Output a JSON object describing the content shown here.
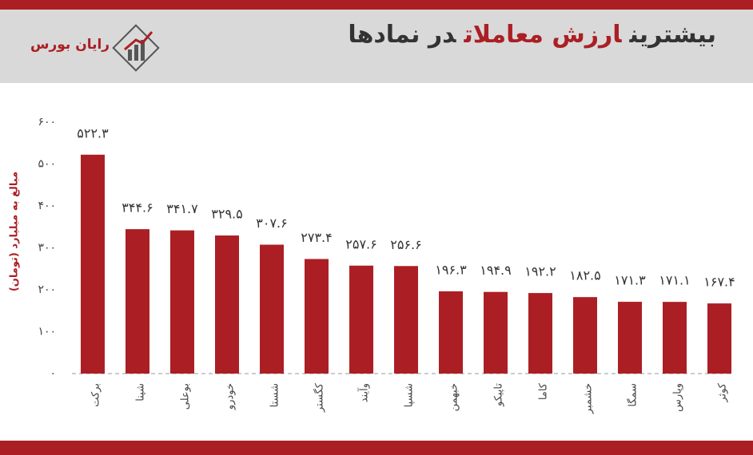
{
  "brand": "رایان بورس",
  "chart_data": {
    "type": "bar",
    "title_parts": [
      "بیشترین",
      "ارزش معاملات",
      "در نمادها"
    ],
    "ylabel": "مبالغ به میلیارد (تومان)",
    "categories": [
      "برکت",
      "شپنا",
      "بوعلی",
      "خودرو",
      "شستا",
      "کگستر",
      "وآیند",
      "شسپا",
      "خبهمن",
      "تاپیکو",
      "کاما",
      "خشمبر",
      "سمگا",
      "وپارس",
      "کوثر"
    ],
    "values": [
      522.3,
      344.6,
      341.7,
      329.5,
      307.6,
      273.4,
      257.6,
      256.6,
      196.3,
      194.9,
      192.2,
      182.5,
      171.3,
      171.1,
      167.4
    ],
    "value_labels": [
      "۵۲۲.۳",
      "۳۴۴.۶",
      "۳۴۱.۷",
      "۳۲۹.۵",
      "۳۰۷.۶",
      "۲۷۳.۴",
      "۲۵۷.۶",
      "۲۵۶.۶",
      "۱۹۶.۳",
      "۱۹۴.۹",
      "۱۹۲.۲",
      "۱۸۲.۵",
      "۱۷۱.۳",
      "۱۷۱.۱",
      "۱۶۷.۴"
    ],
    "color": "#ab1f24",
    "ylim": [
      0,
      600
    ],
    "yticks": [
      {
        "value": 0,
        "label": "۰"
      },
      {
        "value": 100,
        "label": "۱۰۰"
      },
      {
        "value": 200,
        "label": "۲۰۰"
      },
      {
        "value": 300,
        "label": "۳۰۰"
      },
      {
        "value": 400,
        "label": "۴۰۰"
      },
      {
        "value": 500,
        "label": "۵۰۰"
      },
      {
        "value": 600,
        "label": "۶۰۰"
      }
    ],
    "grid": false
  }
}
